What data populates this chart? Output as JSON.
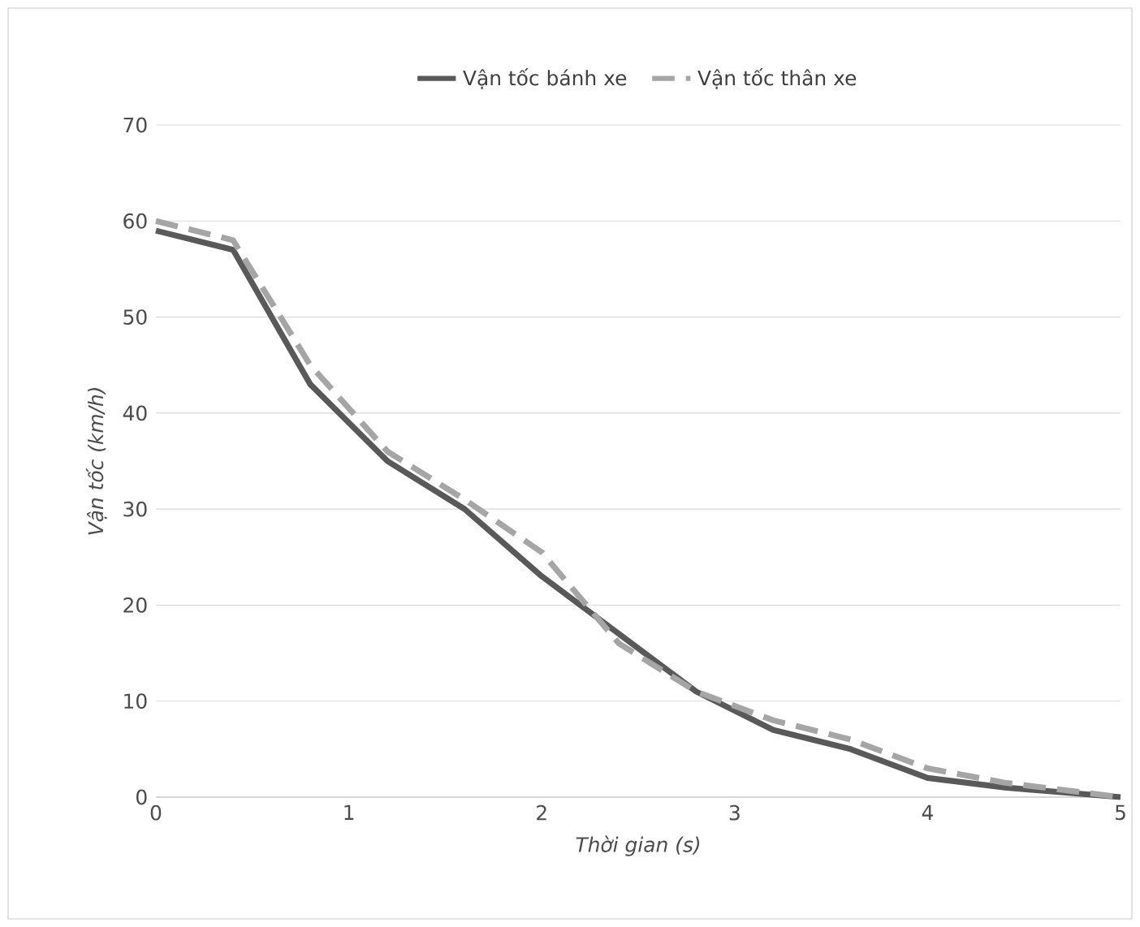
{
  "chart_data": {
    "type": "line",
    "xlabel": "Thời gian (s)",
    "ylabel": "Vận tốc (km/h)",
    "x": [
      0,
      0.4,
      0.8,
      1.2,
      1.6,
      2.0,
      2.4,
      2.8,
      3.2,
      3.6,
      4.0,
      4.4,
      5
    ],
    "series": [
      {
        "name": "Vận tốc bánh xe",
        "color": "#595959",
        "line_style": "solid",
        "values": [
          59,
          57,
          43,
          35,
          30,
          23,
          17,
          11,
          7,
          5,
          2,
          1,
          0
        ]
      },
      {
        "name": "Vận tốc thân xe",
        "color": "#a5a5a5",
        "line_style": "dashed",
        "values": [
          60,
          58,
          45,
          36,
          31,
          25.5,
          16,
          11,
          8,
          6,
          3,
          1.5,
          0
        ]
      }
    ],
    "xlim": [
      0,
      5
    ],
    "xticks": [
      0,
      1,
      2,
      3,
      4,
      5
    ],
    "ylim": [
      0,
      70
    ],
    "yticks": [
      0,
      10,
      20,
      30,
      40,
      50,
      60,
      70
    ],
    "grid": "y",
    "legend": "top",
    "marker": "none"
  }
}
